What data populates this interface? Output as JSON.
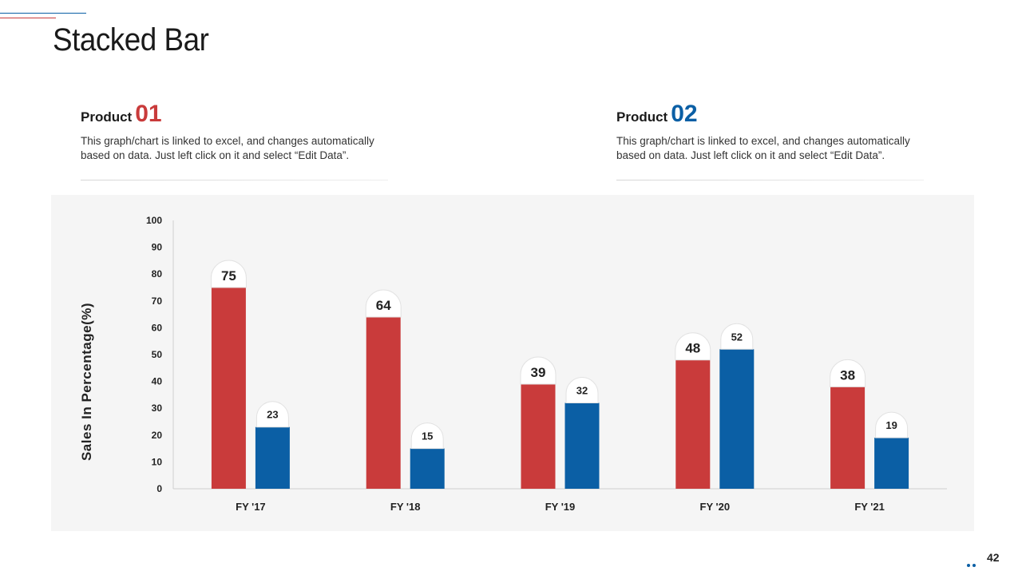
{
  "page": {
    "title": "Stacked Bar",
    "page_number": "42"
  },
  "products": [
    {
      "label": "Product",
      "number": "01",
      "description": "This graph/chart is linked to excel, and changes automatically based on data. Just left click on it and select “Edit Data”.",
      "color": "#c93b3b"
    },
    {
      "label": "Product",
      "number": "02",
      "description": "This graph/chart is linked to excel, and changes automatically based on data. Just left click on it and select “Edit Data”.",
      "color": "#0b5fa5"
    }
  ],
  "chart_data": {
    "type": "bar",
    "title": "",
    "xlabel": "",
    "ylabel": "Sales In Percentage(%)",
    "ylim": [
      0,
      100
    ],
    "yticks": [
      0,
      10,
      20,
      30,
      40,
      50,
      60,
      70,
      80,
      90,
      100
    ],
    "categories": [
      "FY '17",
      "FY '18",
      "FY '19",
      "FY '20",
      "FY '21"
    ],
    "series": [
      {
        "name": "Product 01",
        "color": "#c93b3b",
        "values": [
          75,
          64,
          39,
          48,
          38
        ]
      },
      {
        "name": "Product 02",
        "color": "#0b5fa5",
        "values": [
          23,
          15,
          32,
          52,
          19
        ]
      }
    ],
    "grid": false,
    "legend": "none"
  }
}
